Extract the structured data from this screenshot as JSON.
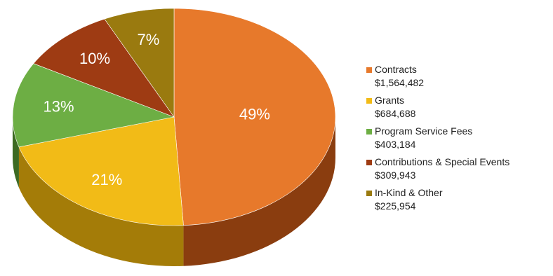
{
  "chart_data": {
    "type": "pie",
    "title": "",
    "slices": [
      {
        "label": "Contracts",
        "value": 1564482,
        "value_label": "$1,564,482",
        "percent": 49,
        "percent_label": "49%",
        "color": "#E7792B",
        "side_color": "#8A3D0F"
      },
      {
        "label": "Grants",
        "value": 684688,
        "value_label": "$684,688",
        "percent": 21,
        "percent_label": "21%",
        "color": "#F2BB17",
        "side_color": "#A47C08"
      },
      {
        "label": "Program Service Fees",
        "value": 403184,
        "value_label": "$403,184",
        "percent": 13,
        "percent_label": "13%",
        "color": "#6DAE44",
        "side_color": "#3D6A22"
      },
      {
        "label": "Contributions & Special Events",
        "value": 309943,
        "value_label": "$309,943",
        "percent": 10,
        "percent_label": "10%",
        "color": "#9E3B13",
        "side_color": "#5E200A"
      },
      {
        "label": "In-Kind & Other",
        "value": 225954,
        "value_label": "$225,954",
        "percent": 7,
        "percent_label": "7%",
        "color": "#9A7A0F",
        "side_color": "#5E4A07"
      }
    ],
    "start_angle_deg": 0,
    "direction": "clockwise",
    "style": "3d",
    "legend_position": "right"
  }
}
